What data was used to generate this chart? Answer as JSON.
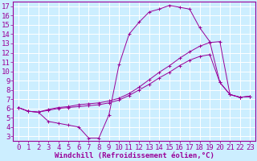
{
  "xlabel": "Windchill (Refroidissement éolien,°C)",
  "bg_color": "#cceeff",
  "grid_color": "#ffffff",
  "line_color": "#990099",
  "xlim": [
    -0.5,
    23.5
  ],
  "ylim": [
    2.5,
    17.5
  ],
  "xticks": [
    0,
    1,
    2,
    3,
    4,
    5,
    6,
    7,
    8,
    9,
    10,
    11,
    12,
    13,
    14,
    15,
    16,
    17,
    18,
    19,
    20,
    21,
    22,
    23
  ],
  "yticks": [
    3,
    4,
    5,
    6,
    7,
    8,
    9,
    10,
    11,
    12,
    13,
    14,
    15,
    16,
    17
  ],
  "line1_x": [
    0,
    1,
    2,
    3,
    4,
    5,
    6,
    7,
    8,
    9,
    10,
    11,
    12,
    13,
    14,
    15,
    16,
    17,
    18,
    19,
    20,
    21,
    22,
    23
  ],
  "line1_y": [
    6.1,
    5.7,
    5.6,
    4.6,
    4.4,
    4.2,
    4.0,
    2.8,
    2.8,
    5.3,
    10.7,
    14.0,
    15.3,
    16.4,
    16.7,
    17.1,
    16.9,
    16.7,
    14.7,
    13.2,
    8.8,
    7.5,
    7.2,
    7.3
  ],
  "line2_x": [
    0,
    1,
    2,
    3,
    4,
    5,
    6,
    7,
    8,
    9,
    10,
    11,
    12,
    13,
    14,
    15,
    16,
    17,
    18,
    19,
    20,
    21,
    22,
    23
  ],
  "line2_y": [
    6.1,
    5.7,
    5.6,
    5.9,
    6.1,
    6.2,
    6.4,
    6.5,
    6.6,
    6.8,
    7.1,
    7.6,
    8.3,
    9.1,
    9.9,
    10.6,
    11.4,
    12.1,
    12.7,
    13.1,
    13.2,
    7.5,
    7.2,
    7.3
  ],
  "line3_x": [
    0,
    1,
    2,
    3,
    4,
    5,
    6,
    7,
    8,
    9,
    10,
    11,
    12,
    13,
    14,
    15,
    16,
    17,
    18,
    19,
    20,
    21,
    22,
    23
  ],
  "line3_y": [
    6.1,
    5.7,
    5.6,
    5.8,
    6.0,
    6.1,
    6.2,
    6.3,
    6.4,
    6.6,
    6.9,
    7.4,
    8.0,
    8.6,
    9.3,
    9.9,
    10.6,
    11.2,
    11.6,
    11.8,
    8.8,
    7.5,
    7.2,
    7.3
  ],
  "tick_fontsize": 6.5,
  "xlabel_fontsize": 6.5
}
